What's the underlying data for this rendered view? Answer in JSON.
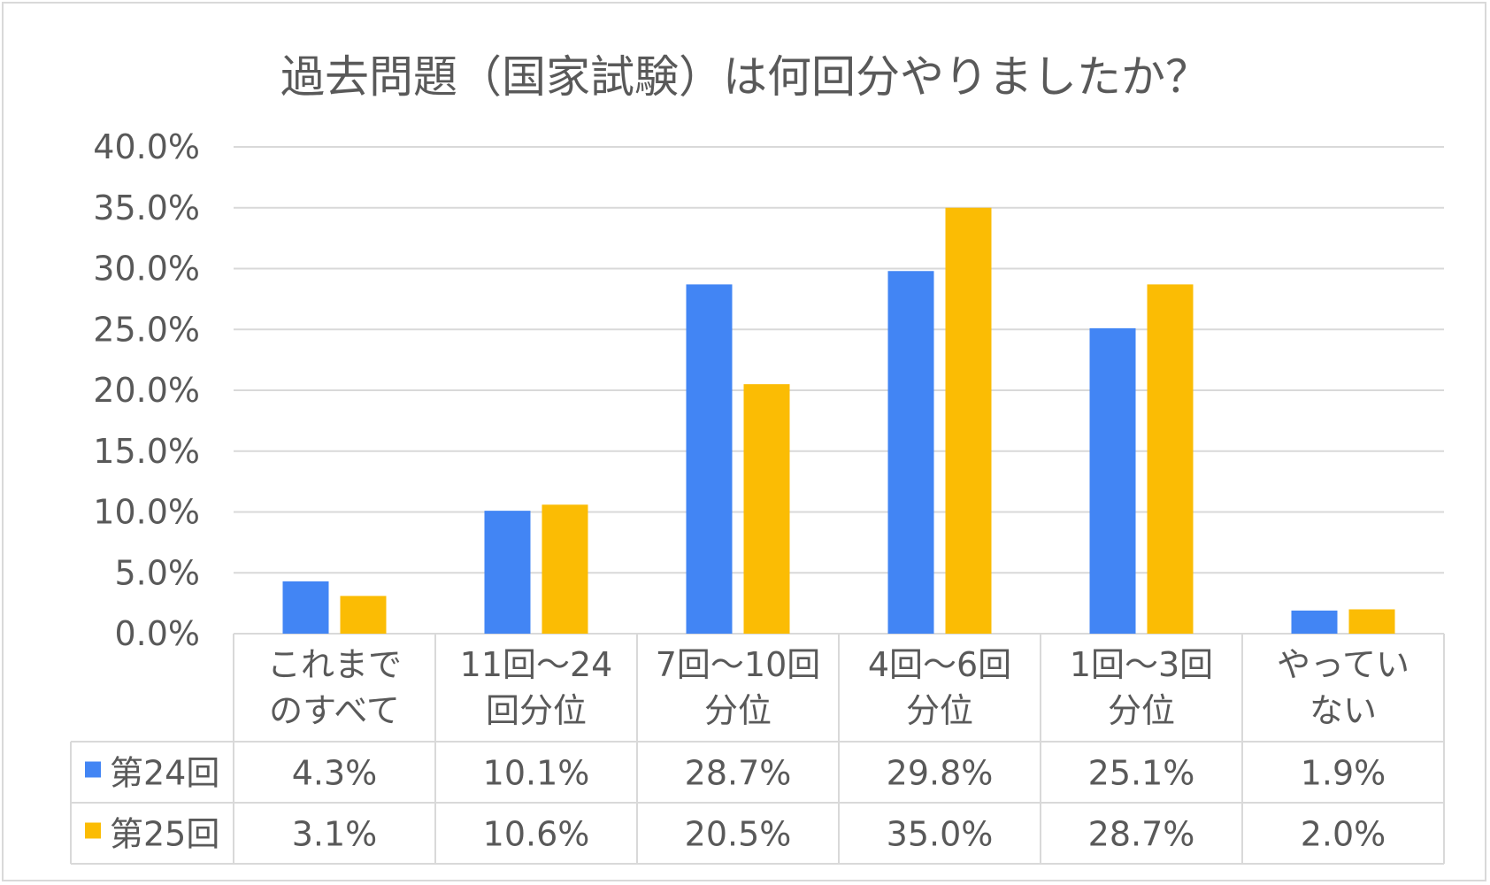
{
  "chart_data": {
    "type": "bar",
    "title": "過去問題（国家試験）は何回分やりましたか？",
    "categories": [
      [
        "これまで",
        "のすべて"
      ],
      [
        "11回～24",
        "回分位"
      ],
      [
        "7回～10回",
        "分位"
      ],
      [
        "4回～6回",
        "分位"
      ],
      [
        "1回～3回",
        "分位"
      ],
      [
        "やってい",
        "ない"
      ]
    ],
    "series": [
      {
        "name": "第24回",
        "color": "#4285f4",
        "values": [
          4.3,
          10.1,
          28.7,
          29.8,
          25.1,
          1.9
        ],
        "labels": [
          "4.3%",
          "10.1%",
          "28.7%",
          "29.8%",
          "25.1%",
          "1.9%"
        ]
      },
      {
        "name": "第25回",
        "color": "#fbbc04",
        "values": [
          3.1,
          10.6,
          20.5,
          35.0,
          28.7,
          2.0
        ],
        "labels": [
          "3.1%",
          "10.6%",
          "20.5%",
          "35.0%",
          "28.7%",
          "2.0%"
        ]
      }
    ],
    "ylim": [
      0,
      40
    ],
    "yticks": [
      "0.0%",
      "5.0%",
      "10.0%",
      "15.0%",
      "20.0%",
      "25.0%",
      "30.0%",
      "35.0%",
      "40.0%"
    ],
    "grid": true,
    "legend": "data-table"
  }
}
